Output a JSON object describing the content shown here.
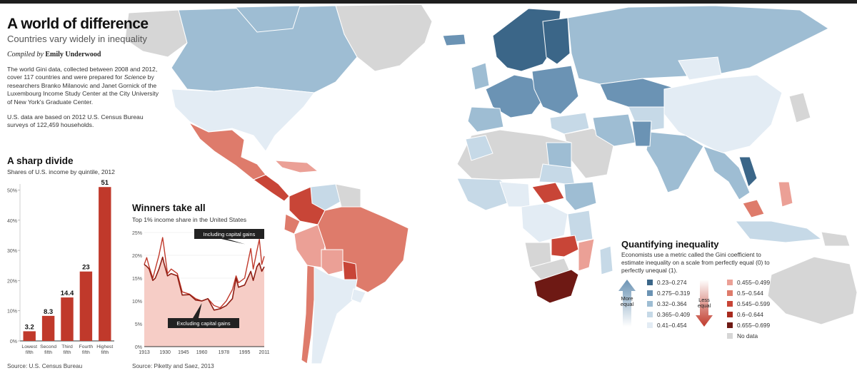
{
  "header": {
    "title": "A world of difference",
    "subtitle": "Countries vary widely in inequality",
    "credit_prefix": "Compiled by",
    "credit_name": "Emily Underwood",
    "para1_a": "The world Gini data, collected between 2008 and 2012, cover 117 countries and were prepared for",
    "para1_italic": "Science",
    "para1_b": "by researchers Branko Milanovic and Janet Gornick of the Luxembourg Income Study Center at the City University of New York's Graduate Center.",
    "para2": "U.S. data are based on 2012 U.S. Census Bureau surveys of 122,459 households."
  },
  "colors": {
    "g1": "#3b6688",
    "g2": "#6b93b4",
    "g3": "#9ebdd3",
    "g4": "#c6d9e7",
    "g5": "#e3ecf4",
    "r1": "#eba096",
    "r2": "#de7b6b",
    "r3": "#c84537",
    "r4": "#a82a1e",
    "r5": "#6e1914",
    "nodata": "#d6d6d6",
    "ocean": "#ffffff",
    "bar": "#c0392b"
  },
  "divide": {
    "title": "A sharp divide",
    "subtitle": "Shares of U.S. income by quintile, 2012",
    "source": "Source: U.S. Census Bureau",
    "chart_data": {
      "type": "bar",
      "categories": [
        "Lowest fifth",
        "Second fifth",
        "Third fifth",
        "Fourth fifth",
        "Highest fifth"
      ],
      "category_lines": [
        [
          "Lowest",
          "fifth"
        ],
        [
          "Second",
          "fifth"
        ],
        [
          "Third",
          "fifth"
        ],
        [
          "Fourth",
          "fifth"
        ],
        [
          "Highest",
          "fifth"
        ]
      ],
      "values": [
        3.2,
        8.3,
        14.4,
        23,
        51
      ],
      "value_labels": [
        "3.2",
        "8.3",
        "14.4",
        "23",
        "51"
      ],
      "ylim": [
        0,
        52
      ],
      "yticks": [
        0,
        10,
        20,
        30,
        40,
        50
      ],
      "ytick_labels": [
        "0%",
        "10%",
        "20%",
        "30%",
        "40%",
        "50%"
      ]
    }
  },
  "winners": {
    "title": "Winners take all",
    "subtitle": "Top 1% income share in the United States",
    "source": "Source: Piketty and Saez, 2013",
    "annotation_top": "Including capital gains",
    "annotation_bottom": "Excluding capital gains",
    "chart_data": {
      "type": "area",
      "xlim": [
        1913,
        2011
      ],
      "ylim": [
        0,
        25
      ],
      "xticks": [
        1913,
        1930,
        1945,
        1960,
        1978,
        1995,
        2011
      ],
      "xtick_labels": [
        "1913",
        "1930",
        "1945",
        "1960",
        "1978",
        "1995",
        "2011"
      ],
      "yticks": [
        0,
        5,
        10,
        15,
        20,
        25
      ],
      "ytick_labels": [
        "0%",
        "5%",
        "10%",
        "15%",
        "20%",
        "25%"
      ],
      "series": [
        {
          "name": "Including capital gains",
          "x": [
            1913,
            1915,
            1917,
            1920,
            1922,
            1925,
            1928,
            1929,
            1932,
            1935,
            1940,
            1944,
            1950,
            1955,
            1960,
            1965,
            1970,
            1975,
            1980,
            1985,
            1988,
            1990,
            1995,
            2000,
            2002,
            2005,
            2007,
            2009,
            2011
          ],
          "y": [
            18,
            19.5,
            17.5,
            15,
            17,
            20,
            23.9,
            22,
            16,
            17,
            16,
            12,
            11.5,
            10.5,
            10,
            10.5,
            9,
            8.5,
            10,
            12.5,
            15.5,
            14,
            15,
            21.5,
            17,
            21,
            23.5,
            18,
            19.8
          ]
        },
        {
          "name": "Excluding capital gains",
          "x": [
            1913,
            1915,
            1917,
            1920,
            1922,
            1925,
            1928,
            1929,
            1932,
            1935,
            1940,
            1944,
            1950,
            1955,
            1960,
            1965,
            1970,
            1975,
            1980,
            1985,
            1988,
            1990,
            1995,
            2000,
            2002,
            2005,
            2007,
            2009,
            2011
          ],
          "y": [
            18,
            17.6,
            17,
            14.5,
            15,
            17,
            19.6,
            18.4,
            15.5,
            16,
            15.5,
            11.3,
            11.4,
            10.2,
            10,
            10.5,
            8,
            8.3,
            9,
            10.5,
            15,
            13,
            13.5,
            16.5,
            14.5,
            17.5,
            18.3,
            16.5,
            17.5
          ]
        }
      ]
    }
  },
  "legend": {
    "title": "Quantifying inequality",
    "description": "Economists use a metric called the Gini coefficient to estimate inequality on a scale from perfectly equal (0) to perfectly unequal (1).",
    "more_equal_lines": [
      "More",
      "equal"
    ],
    "less_equal_lines": [
      "Less",
      "equal"
    ],
    "left_items": [
      {
        "label": "0.23–0.274",
        "color": "#3b6688"
      },
      {
        "label": "0.275–0.319",
        "color": "#6b93b4"
      },
      {
        "label": "0.32–0.364",
        "color": "#9ebdd3"
      },
      {
        "label": "0.365–0.409",
        "color": "#c6d9e7"
      },
      {
        "label": "0.41–0.454",
        "color": "#e3ecf4"
      }
    ],
    "right_items": [
      {
        "label": "0.455–0.499",
        "color": "#eba096"
      },
      {
        "label": "0.5–0.544",
        "color": "#de7b6b"
      },
      {
        "label": "0.545–0.599",
        "color": "#c84537"
      },
      {
        "label": "0.6–0.644",
        "color": "#a82a1e"
      },
      {
        "label": "0.655–0.699",
        "color": "#6e1914"
      },
      {
        "label": "No data",
        "color": "#d6d6d6"
      }
    ]
  }
}
